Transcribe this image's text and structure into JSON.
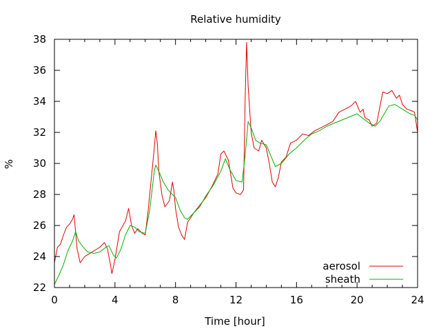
{
  "chart_data": {
    "type": "line",
    "title": "Relative humidity",
    "xlabel": "Time [hour]",
    "ylabel": "%",
    "xlim": [
      0,
      24
    ],
    "ylim": [
      22,
      38
    ],
    "xticks": [
      0,
      4,
      8,
      12,
      16,
      20,
      24
    ],
    "yticks": [
      22,
      24,
      26,
      28,
      30,
      32,
      34,
      36,
      38
    ],
    "grid": false,
    "legend_position": "bottom-right",
    "series": [
      {
        "name": "aerosol",
        "color": "#e00000",
        "points": [
          [
            0,
            23.6
          ],
          [
            0.2,
            24.6
          ],
          [
            0.4,
            24.8
          ],
          [
            0.6,
            25.4
          ],
          [
            0.8,
            25.9
          ],
          [
            1.0,
            26.1
          ],
          [
            1.2,
            26.4
          ],
          [
            1.3,
            26.7
          ],
          [
            1.5,
            24.5
          ],
          [
            1.7,
            23.6
          ],
          [
            2.0,
            24.0
          ],
          [
            2.5,
            24.3
          ],
          [
            3.0,
            24.6
          ],
          [
            3.3,
            24.9
          ],
          [
            3.5,
            24.5
          ],
          [
            3.7,
            23.5
          ],
          [
            3.8,
            22.9
          ],
          [
            4.0,
            23.8
          ],
          [
            4.3,
            25.6
          ],
          [
            4.7,
            26.3
          ],
          [
            4.9,
            27.1
          ],
          [
            5.1,
            26.0
          ],
          [
            5.3,
            25.5
          ],
          [
            5.5,
            25.8
          ],
          [
            5.8,
            25.5
          ],
          [
            6.0,
            25.4
          ],
          [
            6.2,
            27.0
          ],
          [
            6.4,
            29.0
          ],
          [
            6.6,
            31.0
          ],
          [
            6.7,
            32.1
          ],
          [
            6.8,
            31.3
          ],
          [
            6.9,
            29.5
          ],
          [
            7.1,
            28.0
          ],
          [
            7.3,
            27.2
          ],
          [
            7.6,
            27.6
          ],
          [
            7.8,
            28.8
          ],
          [
            7.9,
            28.2
          ],
          [
            8.0,
            27.1
          ],
          [
            8.2,
            25.9
          ],
          [
            8.4,
            25.4
          ],
          [
            8.6,
            25.1
          ],
          [
            8.8,
            26.2
          ],
          [
            9.2,
            26.8
          ],
          [
            9.6,
            27.3
          ],
          [
            10.0,
            27.8
          ],
          [
            10.4,
            28.5
          ],
          [
            10.8,
            29.3
          ],
          [
            11.0,
            30.6
          ],
          [
            11.2,
            30.8
          ],
          [
            11.5,
            30.2
          ],
          [
            11.8,
            28.4
          ],
          [
            12.0,
            28.1
          ],
          [
            12.3,
            28.0
          ],
          [
            12.5,
            28.3
          ],
          [
            12.6,
            34.0
          ],
          [
            12.7,
            37.8
          ],
          [
            12.8,
            35.0
          ],
          [
            13.0,
            32.0
          ],
          [
            13.2,
            31.0
          ],
          [
            13.5,
            30.8
          ],
          [
            13.7,
            31.5
          ],
          [
            14.0,
            31.0
          ],
          [
            14.2,
            30.0
          ],
          [
            14.4,
            28.8
          ],
          [
            14.6,
            28.5
          ],
          [
            14.8,
            29.1
          ],
          [
            15.0,
            30.1
          ],
          [
            15.3,
            30.4
          ],
          [
            15.6,
            31.3
          ],
          [
            16.0,
            31.5
          ],
          [
            16.4,
            31.9
          ],
          [
            16.8,
            31.8
          ],
          [
            17.2,
            32.1
          ],
          [
            17.6,
            32.3
          ],
          [
            18.0,
            32.5
          ],
          [
            18.4,
            32.7
          ],
          [
            18.8,
            33.3
          ],
          [
            19.2,
            33.5
          ],
          [
            19.6,
            33.7
          ],
          [
            19.9,
            34.0
          ],
          [
            20.2,
            33.3
          ],
          [
            20.4,
            33.5
          ],
          [
            20.5,
            33.0
          ],
          [
            20.6,
            32.9
          ],
          [
            20.8,
            32.8
          ],
          [
            21.0,
            32.4
          ],
          [
            21.3,
            32.6
          ],
          [
            21.5,
            33.6
          ],
          [
            21.7,
            34.6
          ],
          [
            22.0,
            34.5
          ],
          [
            22.3,
            34.7
          ],
          [
            22.6,
            34.2
          ],
          [
            22.8,
            34.4
          ],
          [
            23.0,
            33.8
          ],
          [
            23.3,
            33.5
          ],
          [
            23.6,
            33.4
          ],
          [
            23.8,
            33.3
          ],
          [
            24.0,
            32.0
          ]
        ]
      },
      {
        "name": "sheath",
        "color": "#00b000",
        "points": [
          [
            0,
            22.2
          ],
          [
            0.3,
            22.8
          ],
          [
            0.6,
            23.5
          ],
          [
            0.9,
            24.4
          ],
          [
            1.2,
            25.0
          ],
          [
            1.4,
            25.6
          ],
          [
            1.6,
            25.0
          ],
          [
            1.9,
            24.6
          ],
          [
            2.2,
            24.3
          ],
          [
            2.6,
            24.2
          ],
          [
            3.0,
            24.3
          ],
          [
            3.4,
            24.6
          ],
          [
            3.6,
            24.7
          ],
          [
            3.9,
            24.1
          ],
          [
            4.1,
            23.9
          ],
          [
            4.4,
            24.5
          ],
          [
            4.7,
            25.4
          ],
          [
            5.0,
            26.0
          ],
          [
            5.3,
            25.9
          ],
          [
            5.6,
            25.6
          ],
          [
            6.0,
            25.5
          ],
          [
            6.3,
            27.0
          ],
          [
            6.6,
            29.5
          ],
          [
            6.7,
            29.9
          ],
          [
            6.9,
            29.5
          ],
          [
            7.2,
            28.8
          ],
          [
            7.5,
            28.3
          ],
          [
            7.8,
            28.0
          ],
          [
            8.0,
            27.8
          ],
          [
            8.3,
            27.0
          ],
          [
            8.6,
            26.5
          ],
          [
            8.8,
            26.4
          ],
          [
            9.2,
            26.8
          ],
          [
            9.6,
            27.2
          ],
          [
            10.0,
            27.9
          ],
          [
            10.5,
            28.6
          ],
          [
            11.0,
            29.5
          ],
          [
            11.3,
            30.3
          ],
          [
            11.6,
            29.6
          ],
          [
            12.0,
            28.9
          ],
          [
            12.4,
            28.8
          ],
          [
            12.6,
            30.5
          ],
          [
            12.8,
            32.7
          ],
          [
            13.0,
            32.3
          ],
          [
            13.3,
            31.5
          ],
          [
            13.6,
            31.3
          ],
          [
            14.0,
            31.2
          ],
          [
            14.3,
            30.5
          ],
          [
            14.6,
            29.8
          ],
          [
            15.0,
            30.0
          ],
          [
            15.5,
            30.6
          ],
          [
            16.0,
            31.0
          ],
          [
            16.5,
            31.5
          ],
          [
            17.0,
            31.9
          ],
          [
            17.5,
            32.1
          ],
          [
            18.0,
            32.4
          ],
          [
            18.5,
            32.6
          ],
          [
            19.0,
            32.8
          ],
          [
            19.5,
            33.0
          ],
          [
            20.0,
            33.2
          ],
          [
            20.4,
            32.9
          ],
          [
            20.8,
            32.6
          ],
          [
            21.2,
            32.4
          ],
          [
            21.5,
            32.7
          ],
          [
            21.8,
            33.2
          ],
          [
            22.1,
            33.7
          ],
          [
            22.5,
            33.8
          ],
          [
            23.0,
            33.5
          ],
          [
            23.5,
            33.2
          ],
          [
            23.8,
            33.1
          ],
          [
            24.0,
            32.8
          ]
        ]
      }
    ]
  }
}
